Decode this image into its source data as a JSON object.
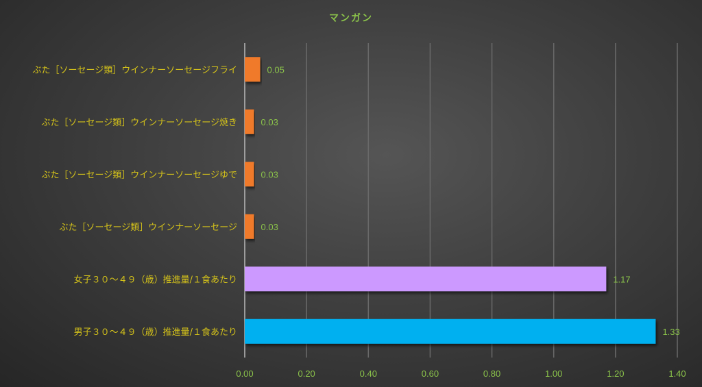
{
  "chart_data": {
    "type": "bar",
    "orientation": "horizontal",
    "title": "マンガン",
    "categories": [
      "ぶた［ソーセージ類］ウインナーソーセージフライ",
      "ぶた［ソーセージ類］ウインナーソーセージ焼き",
      "ぶた［ソーセージ類］ウインナーソーセージゆで",
      "ぶた［ソーセージ類］ウインナーソーセージ",
      "女子３０～４９（歳）推進量/１食あたり",
      "男子３０～４９（歳）推進量/１食あたり"
    ],
    "values": [
      0.05,
      0.03,
      0.03,
      0.03,
      1.17,
      1.33
    ],
    "data_labels": [
      "0.05",
      "0.03",
      "0.03",
      "0.03",
      "1.17",
      "1.33"
    ],
    "bar_colors": [
      "#f07a2a",
      "#f07a2a",
      "#f07a2a",
      "#f07a2a",
      "#cc99ff",
      "#00b0f0"
    ],
    "xlim": [
      0,
      1.4
    ],
    "xticks": [
      "0.00",
      "0.20",
      "0.40",
      "0.60",
      "0.80",
      "1.00",
      "1.20",
      "1.40"
    ],
    "grid": "vertical",
    "colors": {
      "title": "#8bc34a",
      "category_labels": "#d4c21a",
      "value_labels": "#8bc34a"
    }
  }
}
